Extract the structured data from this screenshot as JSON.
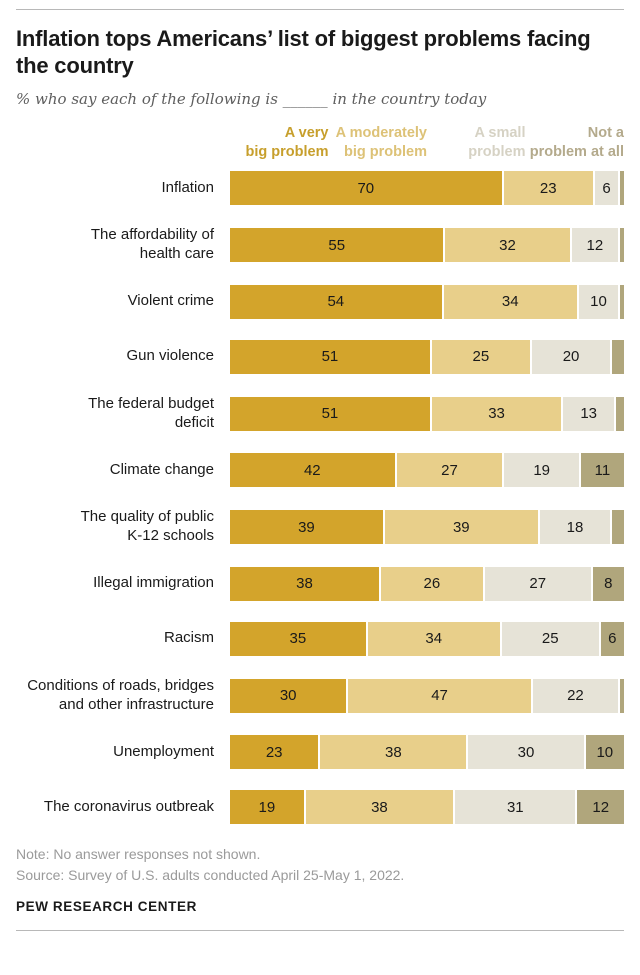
{
  "header": {
    "title": "Inflation tops Americans’ list of biggest problems facing the country",
    "subtitle": "% who say each of the following is ______ in the country today"
  },
  "chart_data": {
    "type": "bar",
    "stacked": true,
    "orientation": "horizontal",
    "xlim": [
      0,
      100
    ],
    "min_label_value": 6,
    "legend_position": "top",
    "legend": [
      {
        "key": "very-big",
        "label": "A very\nbig problem",
        "color": "#d3a42b",
        "text_color": "#c79f2c"
      },
      {
        "key": "moderately-big",
        "label": "A moderately\nbig problem",
        "color": "#e8cf8a",
        "text_color": "#ddc277"
      },
      {
        "key": "small",
        "label": "A small\nproblem",
        "color": "#e6e3d7",
        "text_color": "#d6d2c4"
      },
      {
        "key": "not-at-all",
        "label": "Not a\nproblem at all",
        "color": "#b0a67c",
        "text_color": "#b4aa8c"
      }
    ],
    "rows": [
      {
        "label": "Inflation",
        "values": [
          70,
          23,
          6,
          1
        ]
      },
      {
        "label": "The affordability of\nhealth care",
        "values": [
          55,
          32,
          12,
          1
        ]
      },
      {
        "label": "Violent crime",
        "values": [
          54,
          34,
          10,
          1
        ]
      },
      {
        "label": "Gun violence",
        "values": [
          51,
          25,
          20,
          3
        ]
      },
      {
        "label": "The federal budget\ndeficit",
        "values": [
          51,
          33,
          13,
          2
        ]
      },
      {
        "label": "Climate change",
        "values": [
          42,
          27,
          19,
          11
        ]
      },
      {
        "label": "The quality of public\nK-12 schools",
        "values": [
          39,
          39,
          18,
          3
        ]
      },
      {
        "label": "Illegal immigration",
        "values": [
          38,
          26,
          27,
          8
        ]
      },
      {
        "label": "Racism",
        "values": [
          35,
          34,
          25,
          6
        ]
      },
      {
        "label": "Conditions of roads, bridges\nand other infrastructure",
        "values": [
          30,
          47,
          22,
          1
        ]
      },
      {
        "label": "Unemployment",
        "values": [
          23,
          38,
          30,
          10
        ]
      },
      {
        "label": "The coronavirus outbreak",
        "values": [
          19,
          38,
          31,
          12
        ]
      }
    ]
  },
  "footer": {
    "note": "Note: No answer responses not shown.",
    "source": "Source: Survey of U.S. adults conducted April 25-May 1, 2022.",
    "brand": "PEW RESEARCH CENTER"
  }
}
